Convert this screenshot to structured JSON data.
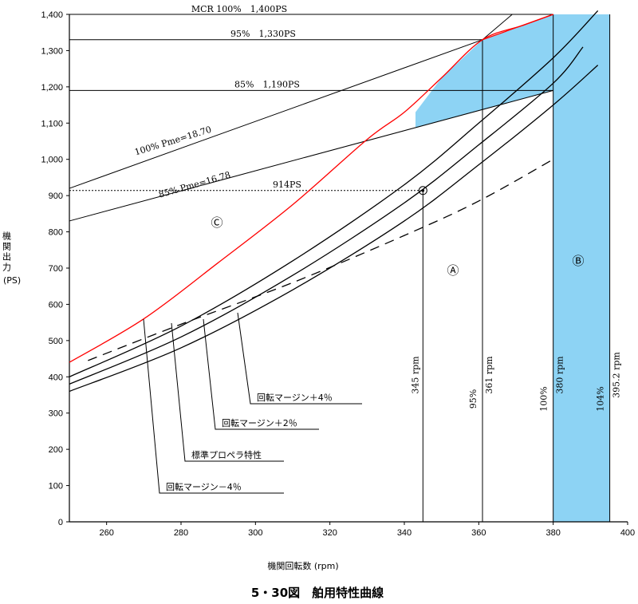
{
  "chart_data": {
    "type": "line",
    "title": "5・30図　舶用特性曲線",
    "xlabel": "機関回転数 (rpm)",
    "ylabel": "機関出力",
    "ylabel_unit": "(PS)",
    "xlim": [
      250,
      400
    ],
    "ylim": [
      0,
      1400
    ],
    "x_ticks": [
      "260",
      "280",
      "300",
      "320",
      "340",
      "360",
      "380",
      "400"
    ],
    "y_ticks": [
      "0",
      "100",
      "200",
      "300",
      "400",
      "500",
      "600",
      "700",
      "800",
      "900",
      "1,000",
      "1,100",
      "1,200",
      "1,300",
      "1,400"
    ],
    "reference_lines": [
      {
        "label": "MCR 100%　1,400PS",
        "y": 1400
      },
      {
        "label": "95%　1,330PS",
        "y": 1330
      },
      {
        "label": "85%　1,190PS",
        "y": 1190
      },
      {
        "label": "914PS",
        "y": 914
      }
    ],
    "vertical_lines": [
      {
        "label": "345 rpm",
        "x": 345
      },
      {
        "label": "95%",
        "label2": "361 rpm",
        "x": 361
      },
      {
        "label": "100%",
        "label2": "380 rpm",
        "x": 380
      },
      {
        "label": "104%",
        "label2": "395.2 rpm",
        "x": 395.2
      }
    ],
    "pme_lines": [
      {
        "name": "100% Pme=18.70",
        "points": [
          [
            250,
            920
          ],
          [
            361,
            1330
          ]
        ]
      },
      {
        "name": "85% Pme=16.78",
        "points": [
          [
            250,
            830
          ],
          [
            380,
            1190
          ]
        ]
      }
    ],
    "series": [
      {
        "name": "回転マージン－4％",
        "color": "#ff0000",
        "x": [
          250,
          270,
          290,
          310,
          330,
          340,
          350,
          361,
          372,
          380
        ],
        "y": [
          440,
          560,
          715,
          875,
          1055,
          1130,
          1225,
          1330,
          1370,
          1400
        ]
      },
      {
        "name": "標準プロペラ特性",
        "color": "#000000",
        "x": [
          250,
          280,
          310,
          340,
          360,
          380,
          392
        ],
        "y": [
          400,
          540,
          720,
          930,
          1100,
          1280,
          1410
        ]
      },
      {
        "name": "回転マージン＋2％",
        "color": "#000000",
        "x": [
          250,
          280,
          310,
          340,
          360,
          380,
          388
        ],
        "y": [
          380,
          510,
          680,
          880,
          1040,
          1210,
          1310
        ]
      },
      {
        "name": "回転マージン＋4％",
        "color": "#000000",
        "x": [
          250,
          280,
          310,
          340,
          360,
          380,
          392
        ],
        "y": [
          360,
          480,
          640,
          830,
          985,
          1150,
          1260
        ]
      },
      {
        "name": "",
        "color": "#000000",
        "dashed": true,
        "x": [
          255,
          280,
          310,
          340,
          360,
          380
        ],
        "y": [
          445,
          545,
          660,
          790,
          885,
          1000
        ]
      }
    ],
    "operating_point": {
      "x": 345,
      "y": 914
    },
    "regions": [
      "Ⓐ",
      "Ⓑ",
      "Ⓒ"
    ],
    "colors": {
      "fill": "#8dd3f4",
      "red": "#ff0000",
      "line": "#000000"
    }
  }
}
